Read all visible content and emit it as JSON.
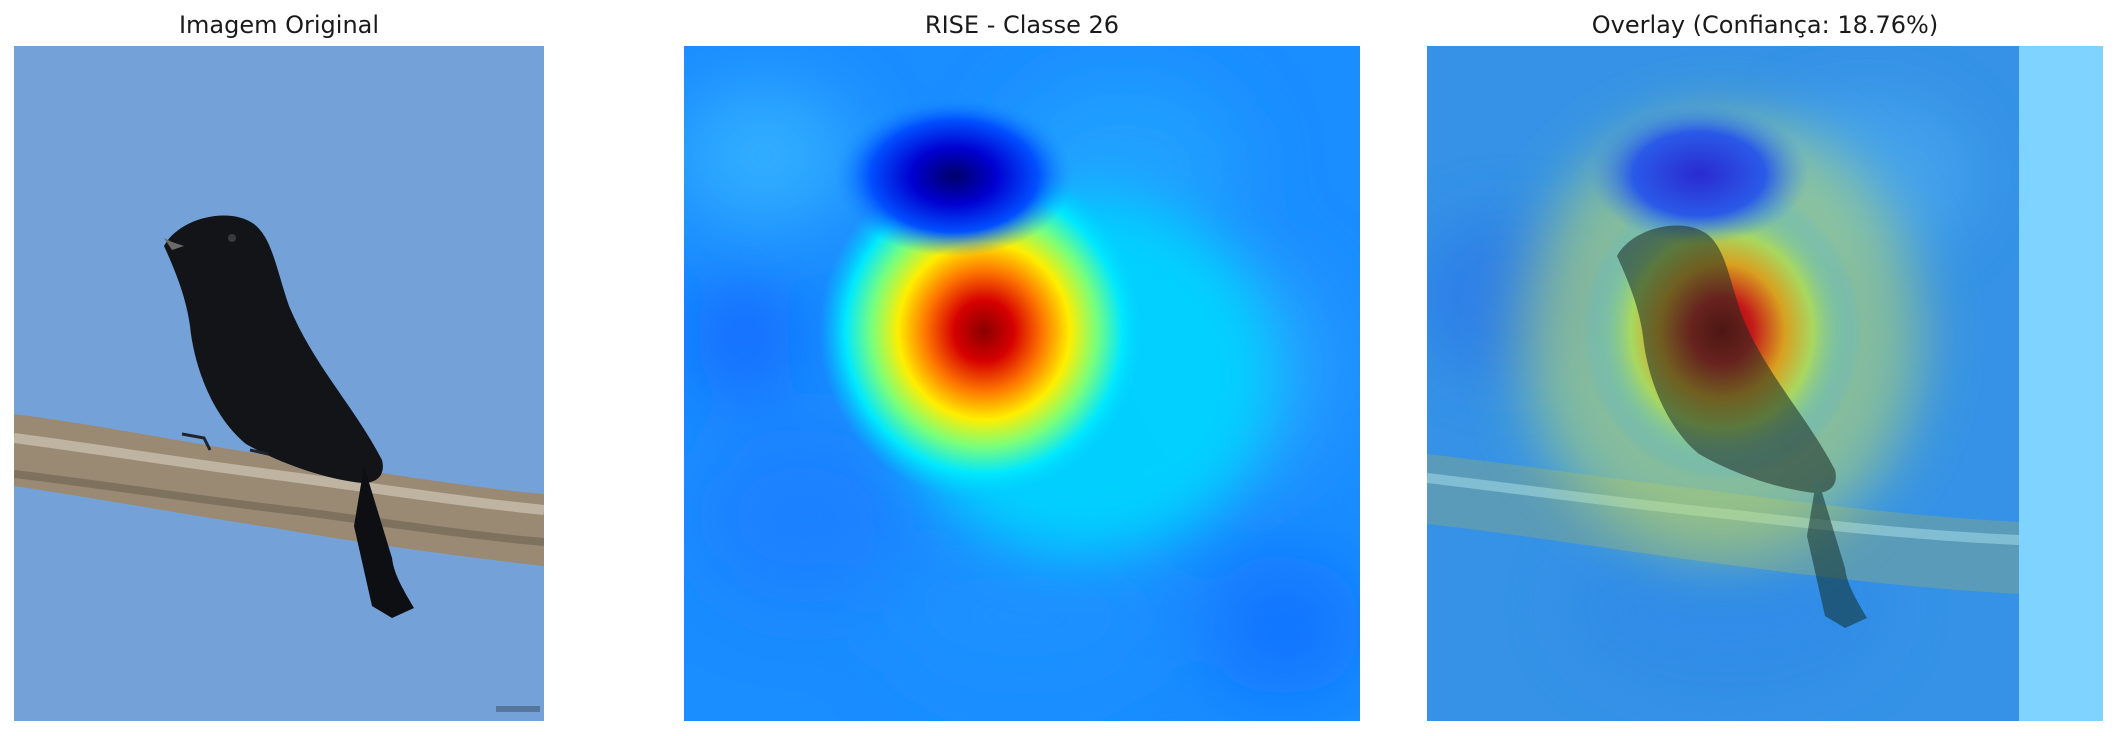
{
  "panels": [
    {
      "title": "Imagem Original"
    },
    {
      "title": "RISE - Classe 26"
    },
    {
      "title": "Overlay (Confiança: 18.76%)"
    }
  ],
  "colors": {
    "sky": "#74a2d8",
    "heat_background": "#1a90ff",
    "heat_peak": "#9a0000",
    "heat_low": "#00007a"
  },
  "icons": [
    "bird-photo",
    "branch",
    "heatmap-blob"
  ]
}
